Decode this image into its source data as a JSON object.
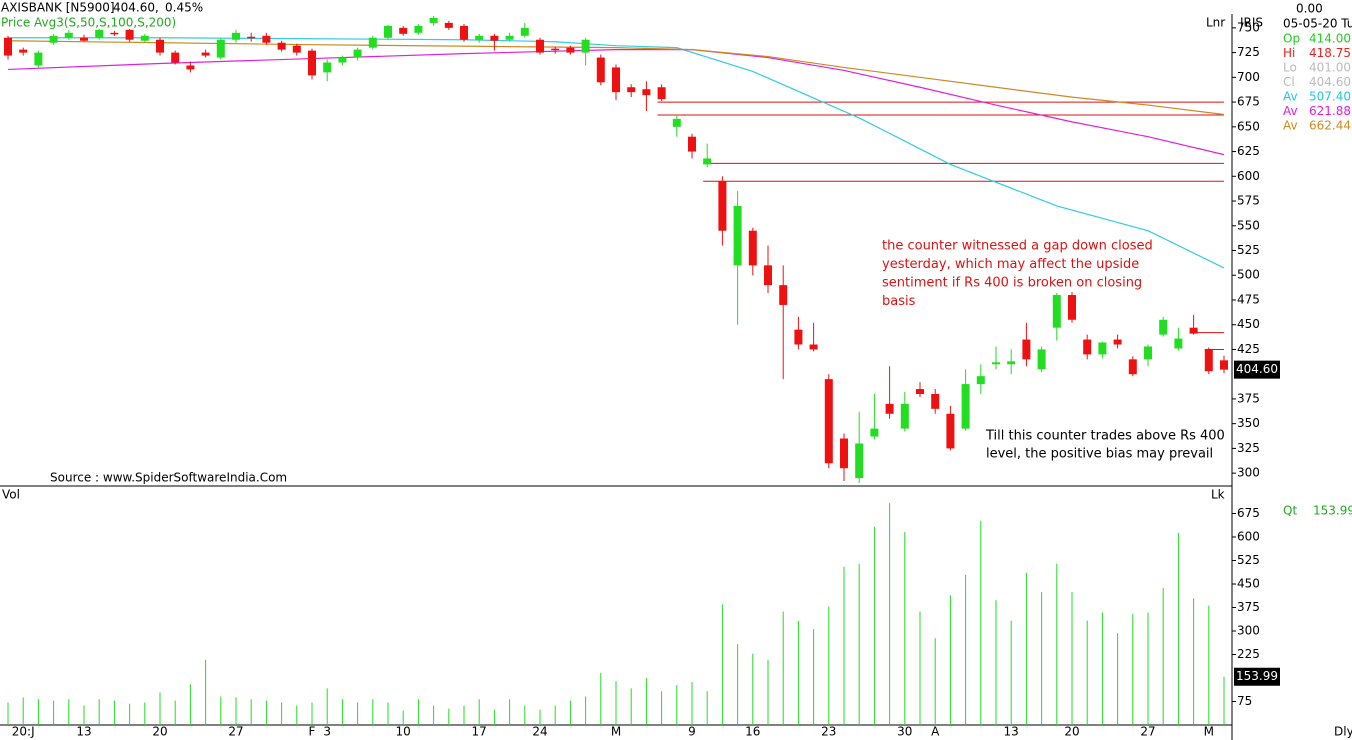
{
  "chart_data": {
    "type": "candlestick",
    "title": "AXISBANK [N5900]",
    "last": "404.60,",
    "change": "0.45%",
    "price_label": "Price",
    "indicator": "Avg3(S,50,S,100,S,200)",
    "scale_mode": "Lnr",
    "right_title": "IRIS",
    "right_value": "0.00",
    "date": "05-05-20 Tu",
    "info": [
      {
        "label": "Op",
        "value": "414.00",
        "color": "#22cc22"
      },
      {
        "label": "Hi",
        "value": "418.75",
        "color": "#ee2222"
      },
      {
        "label": "Lo",
        "value": "401.00",
        "color": "#bbbbbb"
      },
      {
        "label": "Cl",
        "value": "404.60",
        "color": "#bbbbbb"
      },
      {
        "label": "Av",
        "value": "507.40",
        "color": "#22c8e0"
      },
      {
        "label": "Av",
        "value": "621.88",
        "color": "#e020e0"
      },
      {
        "label": "Av",
        "value": "662.44",
        "color": "#d08a20"
      }
    ],
    "price_tag": "404.60",
    "source": "Source : www.SpiderSoftwareIndia.Com",
    "annotation_red": [
      "the counter witnessed a gap down closed",
      "yesterday, which may affect the upside",
      "sentiment if Rs 400 is broken on closing",
      "basis"
    ],
    "annotation_black": [
      "Till this counter trades above Rs 400",
      "level, the positive bias may prevail"
    ],
    "categories": [
      null,
      "20:J",
      null,
      null,
      null,
      "13",
      null,
      null,
      null,
      null,
      "20",
      null,
      null,
      null,
      null,
      "27",
      null,
      null,
      null,
      null,
      "F",
      "3",
      null,
      null,
      null,
      null,
      "10",
      null,
      null,
      null,
      null,
      "17",
      null,
      null,
      null,
      "24",
      null,
      null,
      null,
      null,
      "M",
      null,
      null,
      null,
      null,
      "9",
      null,
      null,
      null,
      "16",
      null,
      null,
      null,
      null,
      "23",
      null,
      null,
      null,
      null,
      "30",
      null,
      "A",
      null,
      null,
      null,
      null,
      "13",
      null,
      null,
      null,
      "20",
      null,
      null,
      null,
      null,
      "27",
      null,
      null,
      null,
      "M",
      null
    ],
    "open": [
      740,
      728,
      712,
      735,
      740,
      740,
      740,
      745,
      748,
      737,
      738,
      725,
      712,
      725,
      720,
      738,
      741,
      742,
      735,
      732,
      727,
      705,
      715,
      720,
      730,
      740,
      750,
      745,
      755,
      755,
      752,
      738,
      742,
      738,
      742,
      738,
      729,
      730,
      725,
      720,
      710,
      690,
      688,
      690,
      650,
      640,
      612,
      595,
      510,
      545,
      510,
      490,
      445,
      430,
      395,
      335,
      295,
      337,
      370,
      345,
      385,
      380,
      360,
      345,
      390,
      410,
      410,
      435,
      405,
      447,
      480,
      435,
      420,
      435,
      415,
      415,
      440,
      426,
      447,
      425,
      414
    ],
    "high": [
      742,
      730,
      727,
      744,
      748,
      743,
      749,
      747,
      749,
      744,
      740,
      727,
      716,
      728,
      740,
      748,
      745,
      745,
      737,
      734,
      729,
      718,
      722,
      730,
      742,
      753,
      752,
      754,
      762,
      757,
      754,
      744,
      744,
      745,
      755,
      740,
      731,
      732,
      740,
      723,
      713,
      693,
      696,
      693,
      662,
      643,
      633,
      600,
      585,
      548,
      530,
      510,
      458,
      452,
      400,
      340,
      362,
      380,
      408,
      382,
      392,
      385,
      368,
      405,
      410,
      428,
      425,
      452,
      428,
      482,
      483,
      440,
      433,
      440,
      418,
      430,
      458,
      447,
      460,
      427,
      418.75
    ],
    "low": [
      718,
      722,
      710,
      733,
      738,
      736,
      738,
      742,
      736,
      735,
      722,
      713,
      705,
      720,
      718,
      735,
      736,
      733,
      726,
      722,
      698,
      696,
      712,
      717,
      728,
      738,
      742,
      743,
      752,
      748,
      736,
      735,
      727,
      736,
      740,
      723,
      724,
      723,
      712,
      692,
      677,
      680,
      666,
      676,
      640,
      618,
      609,
      530,
      450,
      500,
      482,
      395,
      425,
      423,
      305,
      292,
      290,
      334,
      355,
      342,
      377,
      360,
      323,
      343,
      380,
      405,
      400,
      408,
      402,
      434,
      452,
      415,
      416,
      426,
      398,
      408,
      438,
      424,
      440,
      400,
      401
    ],
    "close": [
      722,
      725,
      725,
      742,
      745,
      737,
      748,
      744,
      738,
      742,
      725,
      715,
      708,
      722,
      738,
      745,
      740,
      735,
      728,
      725,
      702,
      715,
      720,
      728,
      740,
      752,
      744,
      752,
      760,
      750,
      738,
      742,
      737,
      742,
      750,
      725,
      728,
      725,
      738,
      695,
      685,
      685,
      682,
      678,
      658,
      625,
      618,
      545,
      570,
      510,
      490,
      470,
      430,
      425,
      310,
      305,
      330,
      345,
      360,
      370,
      380,
      365,
      325,
      390,
      398,
      412,
      413,
      415,
      425,
      480,
      455,
      420,
      432,
      430,
      400,
      428,
      455,
      436,
      441,
      403,
      404.6
    ],
    "up_color": "#22dd22",
    "down_color": "#ee1111",
    "averages": [
      {
        "color": "#33cce0",
        "x": [
          0,
          10,
          20,
          30,
          36,
          40,
          44,
          49,
          56,
          62,
          69,
          75,
          80
        ],
        "values": [
          740,
          740,
          739,
          738,
          736,
          732,
          730,
          706,
          659,
          612,
          570,
          545,
          507.4
        ]
      },
      {
        "color": "#dd22dd",
        "x": [
          0,
          10,
          20,
          30,
          40,
          45,
          50,
          55,
          60,
          65,
          70,
          75,
          80
        ],
        "values": [
          708,
          714,
          719,
          724,
          728,
          728,
          720,
          707,
          690,
          672,
          655,
          640,
          621.88
        ]
      },
      {
        "color": "#cc8a22",
        "x": [
          0,
          20,
          40,
          45,
          50,
          55,
          60,
          65,
          70,
          75,
          80
        ],
        "values": [
          737,
          733,
          730,
          728,
          721,
          710,
          700,
          690,
          680,
          672,
          662.44
        ]
      }
    ],
    "levels": [
      {
        "value": 675,
        "from": 43
      },
      {
        "value": 662,
        "from": 43
      },
      {
        "value": 613,
        "from": 46
      },
      {
        "value": 595,
        "from": 46
      },
      {
        "value": 442,
        "from": 78
      },
      {
        "value": 425,
        "from": 79
      }
    ],
    "ylim": [
      287,
      763
    ],
    "yticks": [
      300,
      325,
      350,
      375,
      425,
      450,
      475,
      500,
      525,
      550,
      575,
      600,
      625,
      650,
      675,
      700,
      725,
      750
    ],
    "volume_label": "Vol",
    "volume_scale": "Lk",
    "qty_label": "Qt",
    "qty_value": "153.99",
    "volume_tag": "153.99",
    "period": "Dly",
    "volume": [
      72,
      88,
      82,
      78,
      82,
      62,
      82,
      78,
      68,
      72,
      104,
      78,
      130,
      208,
      91,
      88,
      82,
      78,
      72,
      62,
      72,
      117,
      82,
      72,
      82,
      72,
      46,
      82,
      62,
      52,
      62,
      82,
      49,
      82,
      62,
      49,
      62,
      78,
      91,
      166,
      140,
      117,
      150,
      108,
      127,
      137,
      108,
      385,
      258,
      228,
      208,
      362,
      333,
      306,
      378,
      505,
      515,
      633,
      708,
      616,
      362,
      277,
      414,
      479,
      652,
      398,
      333,
      486,
      424,
      515,
      424,
      333,
      359,
      293,
      355,
      359,
      437,
      613,
      404,
      381,
      153.99
    ],
    "volume_color": "#22dd22",
    "vlim": [
      0,
      750
    ],
    "vticks": [
      75,
      225,
      300,
      375,
      450,
      525,
      600,
      675
    ]
  }
}
